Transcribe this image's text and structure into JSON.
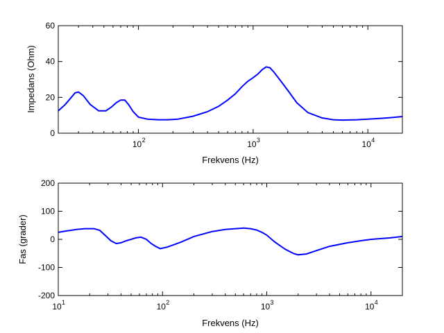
{
  "chart_data": [
    {
      "type": "line",
      "title": "",
      "xlabel": "Frekvens (Hz)",
      "ylabel": "Impedans (Ohm)",
      "xscale": "log",
      "xlim": [
        20,
        20000
      ],
      "ylim": [
        0,
        60
      ],
      "xticks": [
        {
          "value": 100,
          "base": "10",
          "exp": "2"
        },
        {
          "value": 1000,
          "base": "10",
          "exp": "3"
        },
        {
          "value": 10000,
          "base": "10",
          "exp": "4"
        }
      ],
      "yticks": [
        0,
        20,
        40,
        60
      ],
      "grid": false,
      "line_color": "#0000ff",
      "series": [
        {
          "x": [
            20,
            23,
            26,
            28,
            30,
            33,
            38,
            45,
            52,
            58,
            64,
            70,
            76,
            82,
            90,
            100,
            120,
            150,
            180,
            220,
            300,
            400,
            500,
            600,
            700,
            800,
            900,
            1000,
            1100,
            1200,
            1300,
            1400,
            1500,
            1700,
            2000,
            2400,
            3000,
            4000,
            5000,
            6000,
            8000,
            10000,
            13000,
            16000,
            20000
          ],
          "y": [
            12.5,
            16,
            20,
            22.5,
            23,
            21,
            16,
            12.5,
            12.5,
            14.5,
            17,
            18.5,
            18.5,
            16,
            12,
            9,
            7.8,
            7.5,
            7.5,
            7.8,
            9.5,
            12,
            15,
            18.5,
            22,
            26,
            29,
            31,
            33,
            35.5,
            37,
            36.5,
            34.5,
            30,
            24,
            17,
            11.5,
            8.5,
            7.5,
            7.3,
            7.5,
            7.8,
            8.3,
            8.7,
            9.3
          ]
        }
      ]
    },
    {
      "type": "line",
      "title": "",
      "xlabel": "Frekvens (Hz)",
      "ylabel": "Fas (grader)",
      "xscale": "log",
      "xlim": [
        10,
        20000
      ],
      "ylim": [
        -200,
        200
      ],
      "xticks": [
        {
          "value": 10,
          "base": "10",
          "exp": "1"
        },
        {
          "value": 100,
          "base": "10",
          "exp": "2"
        },
        {
          "value": 1000,
          "base": "10",
          "exp": "3"
        },
        {
          "value": 10000,
          "base": "10",
          "exp": "4"
        }
      ],
      "yticks": [
        -200,
        -100,
        0,
        100,
        200
      ],
      "grid": false,
      "line_color": "#0000ff",
      "series": [
        {
          "x": [
            10,
            12,
            15,
            18,
            22,
            25,
            28,
            32,
            36,
            40,
            45,
            50,
            55,
            62,
            70,
            78,
            86,
            95,
            110,
            150,
            200,
            300,
            400,
            500,
            600,
            700,
            800,
            900,
            1000,
            1200,
            1500,
            1800,
            2000,
            2400,
            3000,
            4000,
            6000,
            8000,
            10000,
            15000,
            20000
          ],
          "y": [
            25,
            30,
            35,
            38,
            38,
            32,
            15,
            -5,
            -15,
            -12,
            -5,
            0,
            5,
            8,
            0,
            -15,
            -25,
            -33,
            -28,
            -10,
            10,
            28,
            35,
            38,
            40,
            38,
            33,
            25,
            15,
            -10,
            -35,
            -50,
            -55,
            -52,
            -40,
            -25,
            -12,
            -5,
            0,
            5,
            10
          ]
        }
      ]
    }
  ]
}
